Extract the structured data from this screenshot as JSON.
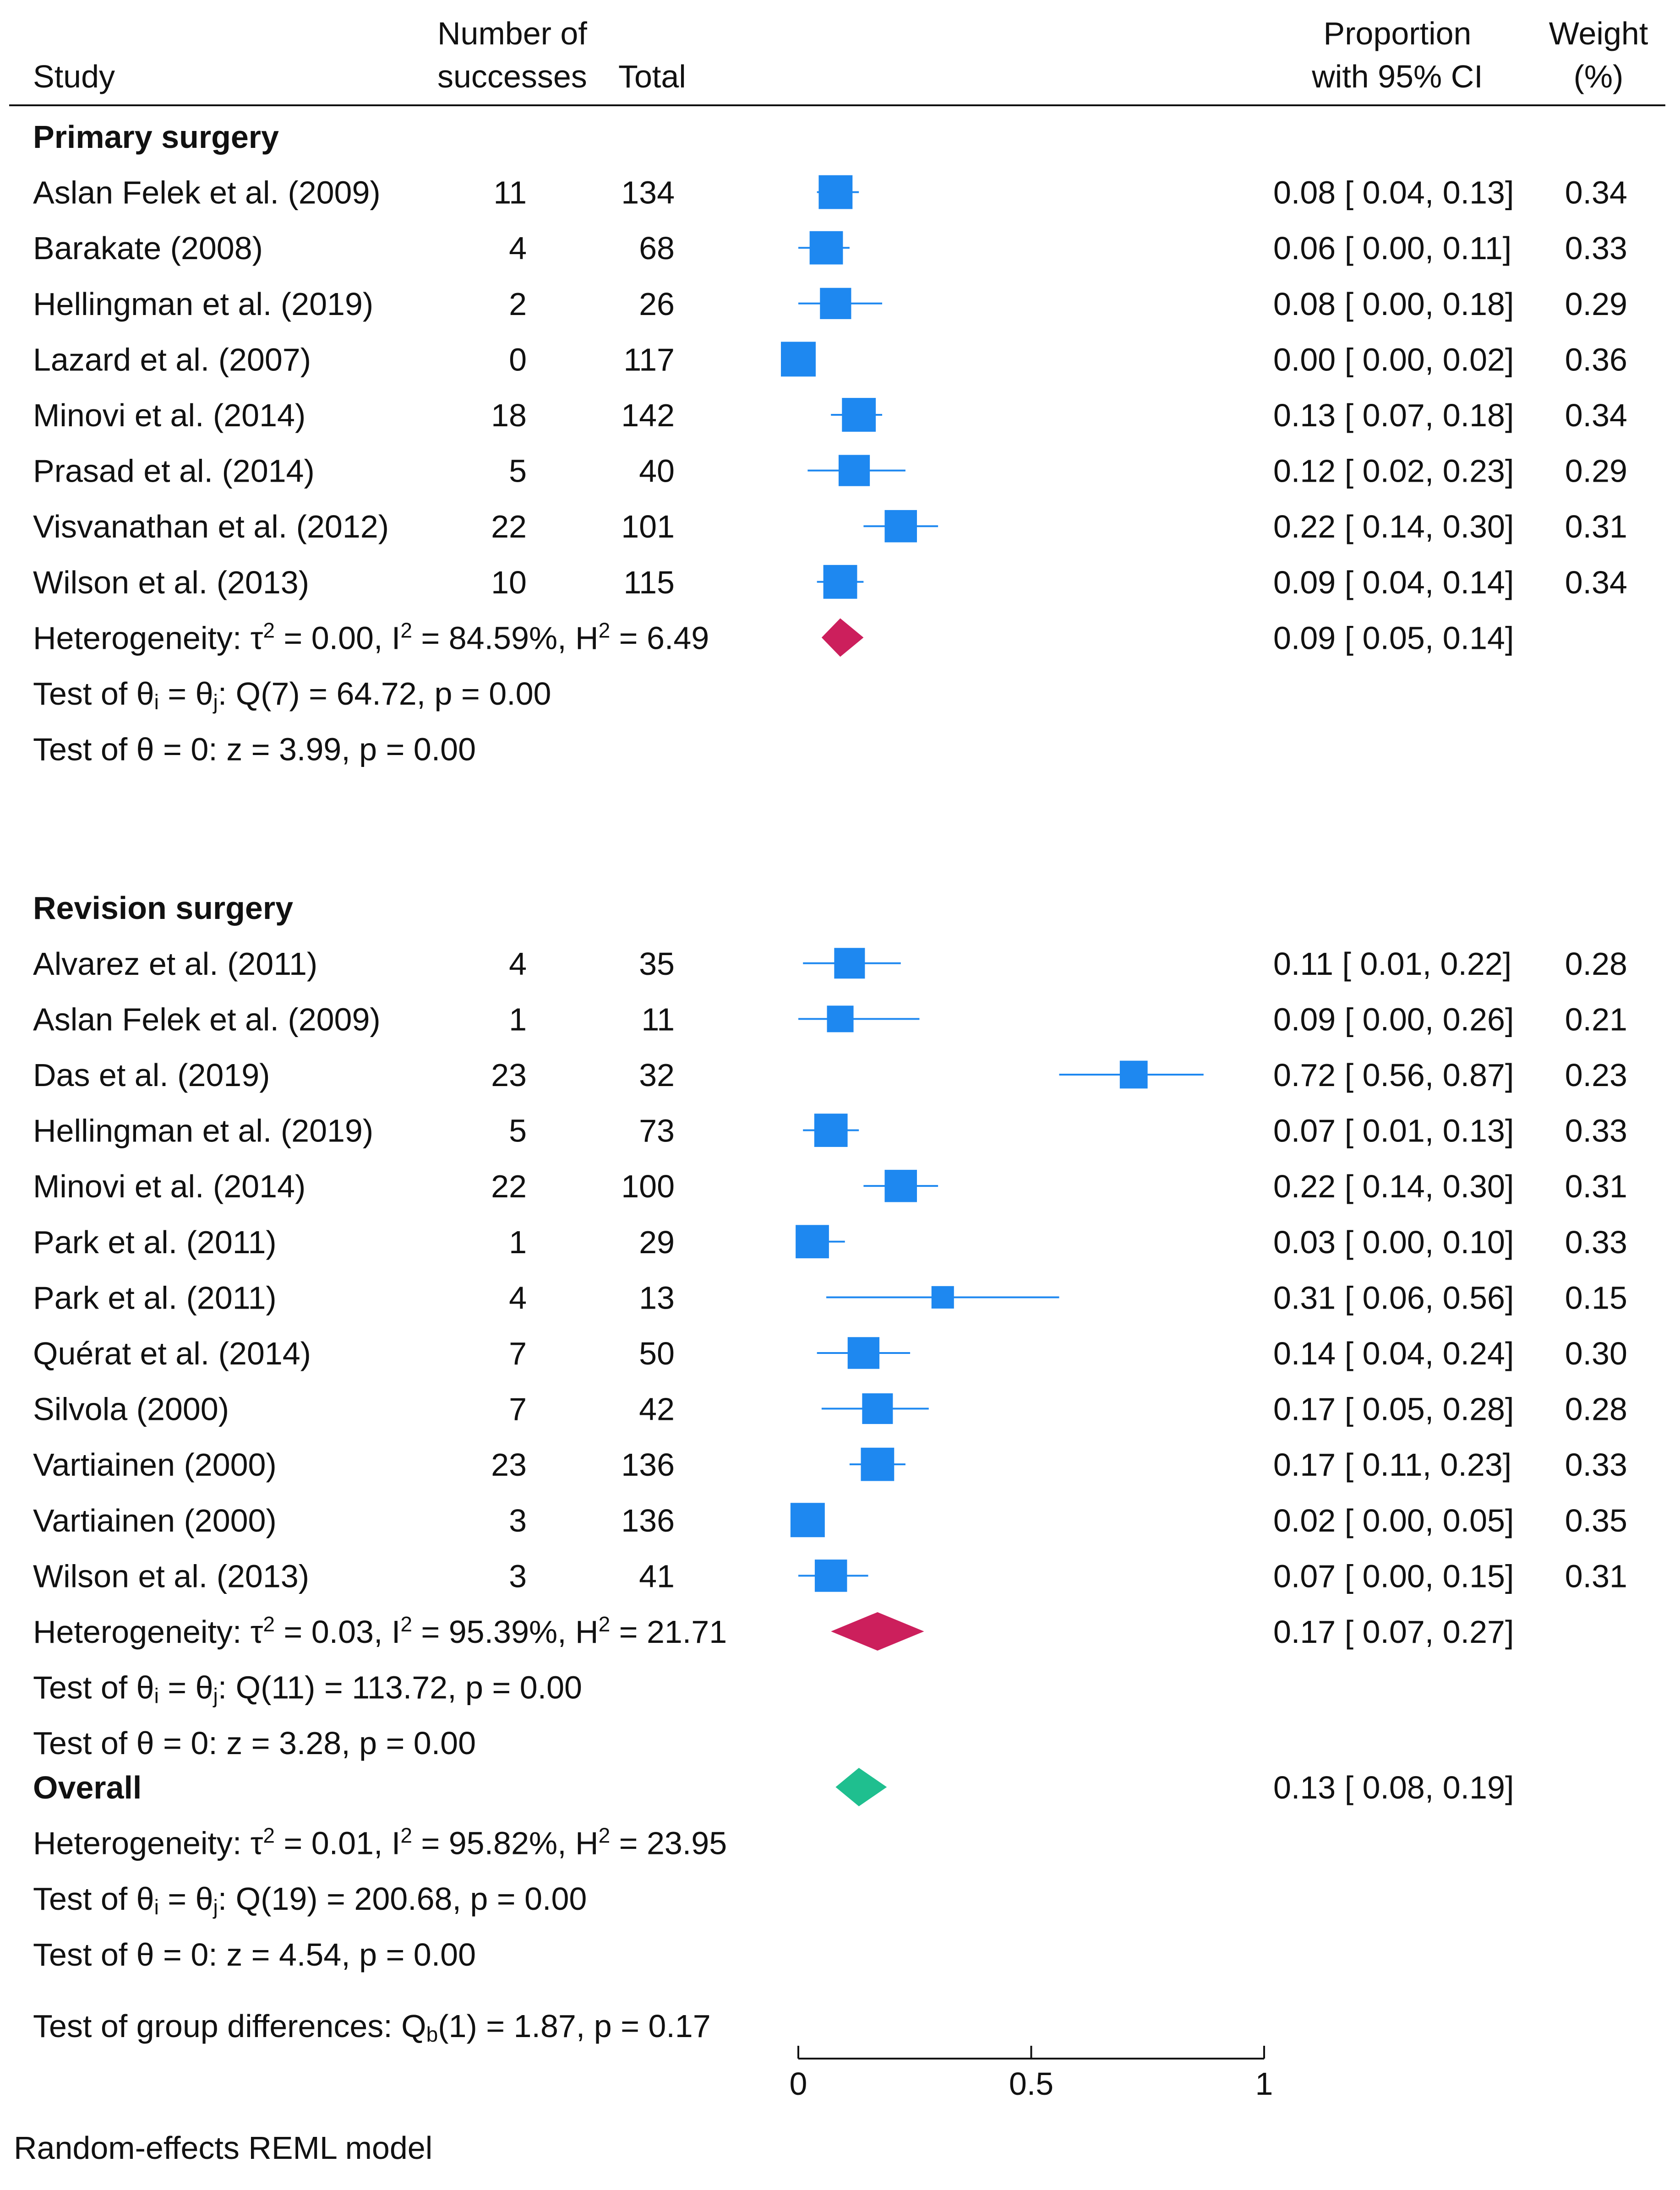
{
  "chart_data": {
    "type": "forest",
    "headers": {
      "study": "Study",
      "successes": [
        "Number of",
        "successes"
      ],
      "total": "Total",
      "ci": [
        "Proportion",
        "with 95% CI"
      ],
      "weight": [
        "Weight",
        "(%)"
      ]
    },
    "xaxis": {
      "range": [
        0,
        1
      ],
      "ticks": [
        0,
        0.5,
        1
      ],
      "tick_labels": [
        "0",
        "0.5",
        "1"
      ]
    },
    "colors": {
      "study": "#1E88F0",
      "primary_summary": "#CC1F5C",
      "revision_summary": "#CC1F5C",
      "overall": "#1FBF8F"
    },
    "groups": [
      {
        "label": "Primary surgery",
        "studies": [
          {
            "name": "Aslan Felek et al. (2009)",
            "successes": "11",
            "total": "134",
            "prop": 0.08,
            "lo": 0.04,
            "hi": 0.13,
            "ci_text": "0.08 [ 0.04,  0.13]",
            "weight": "0.34"
          },
          {
            "name": "Barakate (2008)",
            "successes": "4",
            "total": "68",
            "prop": 0.06,
            "lo": 0.0,
            "hi": 0.11,
            "ci_text": "0.06 [ 0.00,  0.11]",
            "weight": "0.33"
          },
          {
            "name": "Hellingman et al. (2019)",
            "successes": "2",
            "total": "26",
            "prop": 0.08,
            "lo": 0.0,
            "hi": 0.18,
            "ci_text": "0.08 [ 0.00,  0.18]",
            "weight": "0.29"
          },
          {
            "name": "Lazard et al. (2007)",
            "successes": "0",
            "total": "117",
            "prop": 0.0,
            "lo": 0.0,
            "hi": 0.02,
            "ci_text": "0.00 [ 0.00,  0.02]",
            "weight": "0.36"
          },
          {
            "name": "Minovi et al. (2014)",
            "successes": "18",
            "total": "142",
            "prop": 0.13,
            "lo": 0.07,
            "hi": 0.18,
            "ci_text": "0.13 [ 0.07,  0.18]",
            "weight": "0.34"
          },
          {
            "name": "Prasad et al. (2014)",
            "successes": "5",
            "total": "40",
            "prop": 0.12,
            "lo": 0.02,
            "hi": 0.23,
            "ci_text": "0.12 [ 0.02,  0.23]",
            "weight": "0.29"
          },
          {
            "name": "Visvanathan et al. (2012)",
            "successes": "22",
            "total": "101",
            "prop": 0.22,
            "lo": 0.14,
            "hi": 0.3,
            "ci_text": "0.22 [ 0.14,  0.30]",
            "weight": "0.31"
          },
          {
            "name": "Wilson et al. (2013)",
            "successes": "10",
            "total": "115",
            "prop": 0.09,
            "lo": 0.04,
            "hi": 0.14,
            "ci_text": "0.09 [ 0.04,  0.14]",
            "weight": "0.34"
          }
        ],
        "summary": {
          "heterogeneity": {
            "tau2": "0.00",
            "i2": "84.59%",
            "h2": "6.49"
          },
          "prop": 0.09,
          "lo": 0.05,
          "hi": 0.14,
          "ci_text": "0.09 [ 0.05,  0.14]",
          "q_df": "7",
          "q_value": "64.72",
          "q_p": "0.00",
          "z": "3.99",
          "z_p": "0.00"
        }
      },
      {
        "label": "Revision surgery",
        "studies": [
          {
            "name": "Alvarez et al. (2011)",
            "successes": "4",
            "total": "35",
            "prop": 0.11,
            "lo": 0.01,
            "hi": 0.22,
            "ci_text": "0.11 [ 0.01,  0.22]",
            "weight": "0.28"
          },
          {
            "name": "Aslan Felek et al. (2009)",
            "successes": "1",
            "total": "11",
            "prop": 0.09,
            "lo": 0.0,
            "hi": 0.26,
            "ci_text": "0.09 [ 0.00,  0.26]",
            "weight": "0.21"
          },
          {
            "name": "Das et al. (2019)",
            "successes": "23",
            "total": "32",
            "prop": 0.72,
            "lo": 0.56,
            "hi": 0.87,
            "ci_text": "0.72 [ 0.56,  0.87]",
            "weight": "0.23"
          },
          {
            "name": "Hellingman et al. (2019)",
            "successes": "5",
            "total": "73",
            "prop": 0.07,
            "lo": 0.01,
            "hi": 0.13,
            "ci_text": "0.07 [ 0.01,  0.13]",
            "weight": "0.33"
          },
          {
            "name": "Minovi et al. (2014)",
            "successes": "22",
            "total": "100",
            "prop": 0.22,
            "lo": 0.14,
            "hi": 0.3,
            "ci_text": "0.22 [ 0.14,  0.30]",
            "weight": "0.31"
          },
          {
            "name": "Park et al. (2011)",
            "successes": "1",
            "total": "29",
            "prop": 0.03,
            "lo": 0.0,
            "hi": 0.1,
            "ci_text": "0.03 [ 0.00,  0.10]",
            "weight": "0.33"
          },
          {
            "name": "Park et al. (2011)",
            "successes": "4",
            "total": "13",
            "prop": 0.31,
            "lo": 0.06,
            "hi": 0.56,
            "ci_text": "0.31 [ 0.06,  0.56]",
            "weight": "0.15"
          },
          {
            "name": "Quérat et al. (2014)",
            "successes": "7",
            "total": "50",
            "prop": 0.14,
            "lo": 0.04,
            "hi": 0.24,
            "ci_text": "0.14 [ 0.04,  0.24]",
            "weight": "0.30"
          },
          {
            "name": "Silvola (2000)",
            "successes": "7",
            "total": "42",
            "prop": 0.17,
            "lo": 0.05,
            "hi": 0.28,
            "ci_text": "0.17 [ 0.05,  0.28]",
            "weight": "0.28"
          },
          {
            "name": "Vartiainen (2000)",
            "successes": "23",
            "total": "136",
            "prop": 0.17,
            "lo": 0.11,
            "hi": 0.23,
            "ci_text": "0.17 [ 0.11,  0.23]",
            "weight": "0.33"
          },
          {
            "name": "Vartiainen (2000)",
            "successes": "3",
            "total": "136",
            "prop": 0.02,
            "lo": 0.0,
            "hi": 0.05,
            "ci_text": "0.02 [ 0.00,  0.05]",
            "weight": "0.35"
          },
          {
            "name": "Wilson et al. (2013)",
            "successes": "3",
            "total": "41",
            "prop": 0.07,
            "lo": 0.0,
            "hi": 0.15,
            "ci_text": "0.07 [ 0.00,  0.15]",
            "weight": "0.31"
          }
        ],
        "summary": {
          "heterogeneity": {
            "tau2": "0.03",
            "i2": "95.39%",
            "h2": "21.71"
          },
          "prop": 0.17,
          "lo": 0.07,
          "hi": 0.27,
          "ci_text": "0.17 [ 0.07,  0.27]",
          "q_df": "11",
          "q_value": "113.72",
          "q_p": "0.00",
          "z": "3.28",
          "z_p": "0.00"
        }
      }
    ],
    "overall": {
      "label": "Overall",
      "prop": 0.13,
      "lo": 0.08,
      "hi": 0.19,
      "ci_text": "0.13 [ 0.08,  0.19]",
      "heterogeneity": {
        "tau2": "0.01",
        "i2": "95.82%",
        "h2": "23.95"
      },
      "q_df": "19",
      "q_value": "200.68",
      "q_p": "0.00",
      "z": "4.54",
      "z_p": "0.00"
    },
    "group_difference": {
      "qb_df": "1",
      "qb_value": "1.87",
      "p": "0.17"
    },
    "footnote": "Random-effects REML model"
  }
}
